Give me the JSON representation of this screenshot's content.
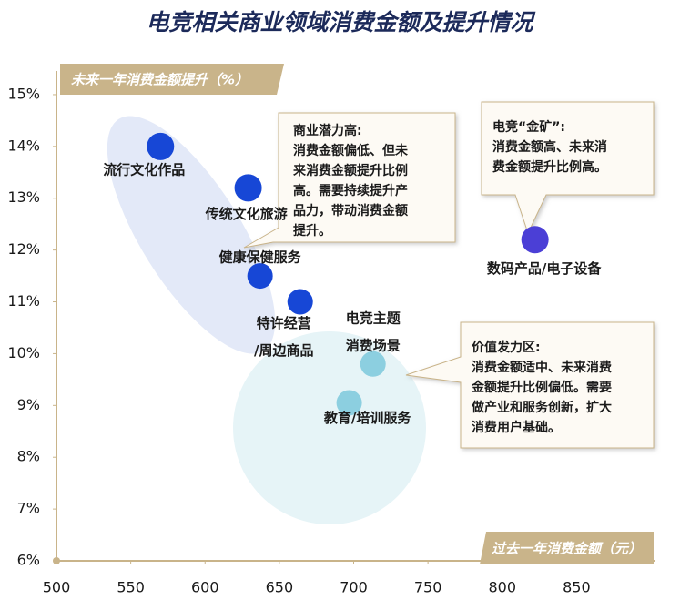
{
  "chart_data": {
    "type": "scatter",
    "title": "电竞相关商业领域消费金额及提升情况",
    "y_label": "未来一年消费金额提升（%）",
    "x_label": "过去一年消费金额（元）",
    "x": [
      570,
      629,
      637,
      664,
      713,
      697,
      822
    ],
    "values": [
      14.0,
      13.2,
      11.5,
      11.0,
      9.8,
      9.05,
      12.2
    ],
    "labels": [
      [
        "流行文化作品"
      ],
      [
        "传统文化旅游"
      ],
      [
        "健康保健服务"
      ],
      [
        "特许经营",
        "/周边商品"
      ],
      [
        "电竞主题",
        "消费场景"
      ],
      [
        "教育/培训服务"
      ],
      [
        "数码产品/电子设备"
      ]
    ],
    "colors": [
      "#1747d6",
      "#1747d6",
      "#1747d6",
      "#1747d6",
      "#8ccfe0",
      "#8ccfe0",
      "#4b3fd6"
    ],
    "xlim": [
      500,
      900
    ],
    "ylim": [
      6,
      15.5
    ],
    "xticks": [
      500,
      550,
      600,
      650,
      700,
      750,
      800,
      850
    ],
    "yticks": [
      {
        "value": 6,
        "label": "6%"
      },
      {
        "value": 7,
        "label": "7%"
      },
      {
        "value": 8,
        "label": "8%"
      },
      {
        "value": 9,
        "label": "9%"
      },
      {
        "value": 10,
        "label": "10%"
      },
      {
        "value": 11,
        "label": "11%"
      },
      {
        "value": 12,
        "label": "12%"
      },
      {
        "value": 13,
        "label": "13%"
      },
      {
        "value": 14,
        "label": "14%"
      },
      {
        "value": 15,
        "label": "15%"
      }
    ],
    "annotations": [
      {
        "lines": [
          "商业潜力高:",
          "消费金额偏低、但未",
          "来消费金额提升比例",
          "高。需要持续提升产",
          "品力，带动消费金额",
          "提升。"
        ]
      },
      {
        "lines": [
          "电竞“金矿”:",
          "消费金额高、未来消",
          "费金额提升比例高。"
        ]
      },
      {
        "lines": [
          "价值发力区:",
          "消费金额适中、未来消费",
          "金额提升比例偏低。需要",
          "做产业和服务创新，扩大",
          "消费用户基础。"
        ]
      }
    ]
  }
}
